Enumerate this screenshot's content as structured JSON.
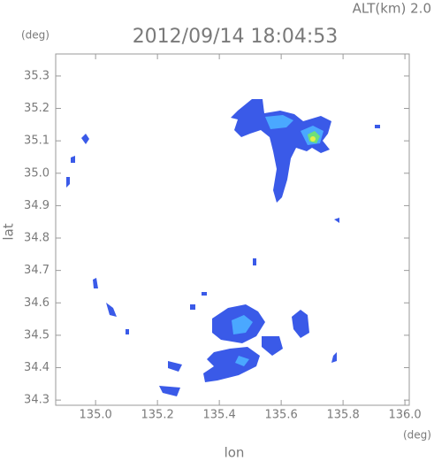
{
  "chart_data": {
    "type": "map",
    "title": "2012/09/14 18:04:53",
    "annotation": "ALT(km) 2.0",
    "x_label": "lon",
    "y_label": "lat",
    "x_unit": "(deg)",
    "y_unit": "(deg)",
    "xlim": [
      134.871,
      136.014
    ],
    "ylim": [
      34.284,
      35.368
    ],
    "xticks": [
      {
        "value": 135,
        "label": "135.0"
      },
      135.2,
      135.4,
      135.6,
      135.8,
      {
        "value": 136,
        "label": "136.0"
      }
    ],
    "yticks": [
      34.3,
      34.4,
      34.5,
      34.6,
      34.7,
      34.8,
      34.9,
      {
        "value": 35,
        "label": "35.0"
      },
      35.1,
      35.2,
      35.3
    ]
  }
}
